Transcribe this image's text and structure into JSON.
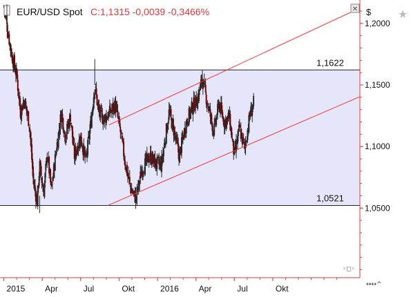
{
  "window": {
    "close_glyph": "✕",
    "currency_symbol": "$",
    "star_glyph": "★",
    "scroll_glyph": "◦◻◦",
    "nav_glyphs": "↔↔^"
  },
  "chart_data": {
    "type": "candlestick",
    "title": "EUR/USD Spot",
    "quote": "C:1,1315 -0,0039 -0,3466%",
    "colors": {
      "background": "#ffffff",
      "range_band": "#e6e6fa",
      "axis": "#e0393e",
      "trendline": "#ff3030",
      "level_line": "#222222",
      "up_candle": "#2a2a2a",
      "down_candle": "#7a0000",
      "title": "#111111",
      "quote": "#e0393e"
    },
    "x_axis": {
      "labels": [
        "2015",
        "Apr",
        "Jul",
        "Okt",
        "2016",
        "Apr",
        "Jul",
        "Okt"
      ],
      "label_months": [
        0,
        3,
        6,
        9,
        12,
        15,
        18,
        21
      ],
      "range_months": [
        -0.3,
        27.8
      ]
    },
    "y_axis": {
      "side": "right",
      "ticks": [
        "1,2000",
        "1,1500",
        "1,1000",
        "1,0500"
      ],
      "tick_values": [
        1.2,
        1.15,
        1.1,
        1.05
      ],
      "range": [
        0.9935,
        1.219
      ]
    },
    "horizontal_levels": [
      {
        "label": "1,1622",
        "value": 1.1622
      },
      {
        "label": "1,0521",
        "value": 1.0521
      }
    ],
    "channel": {
      "upper": {
        "from": [
          8.2,
          1.1175
        ],
        "to": [
          27.8,
          1.2125
        ]
      },
      "lower": {
        "from": [
          8.1,
          1.0521
        ],
        "to": [
          27.8,
          1.1405
        ]
      }
    },
    "series_anchors": [
      [
        0.0,
        1.214
      ],
      [
        0.6,
        1.175
      ],
      [
        1.0,
        1.158
      ],
      [
        1.3,
        1.128
      ],
      [
        1.6,
        1.138
      ],
      [
        2.0,
        1.118
      ],
      [
        2.3,
        1.072
      ],
      [
        2.6,
        1.055
      ],
      [
        2.8,
        1.085
      ],
      [
        3.1,
        1.062
      ],
      [
        3.4,
        1.095
      ],
      [
        3.7,
        1.064
      ],
      [
        4.1,
        1.098
      ],
      [
        4.5,
        1.128
      ],
      [
        4.8,
        1.108
      ],
      [
        5.2,
        1.125
      ],
      [
        5.5,
        1.092
      ],
      [
        6.0,
        1.108
      ],
      [
        6.4,
        1.088
      ],
      [
        6.8,
        1.12
      ],
      [
        7.1,
        1.15
      ],
      [
        7.4,
        1.128
      ],
      [
        7.8,
        1.122
      ],
      [
        8.3,
        1.128
      ],
      [
        8.7,
        1.134
      ],
      [
        9.1,
        1.112
      ],
      [
        9.5,
        1.085
      ],
      [
        9.9,
        1.066
      ],
      [
        10.3,
        1.058
      ],
      [
        10.8,
        1.082
      ],
      [
        11.4,
        1.092
      ],
      [
        11.9,
        1.086
      ],
      [
        12.3,
        1.085
      ],
      [
        12.9,
        1.128
      ],
      [
        13.3,
        1.112
      ],
      [
        13.7,
        1.092
      ],
      [
        14.2,
        1.118
      ],
      [
        14.7,
        1.132
      ],
      [
        15.1,
        1.138
      ],
      [
        15.5,
        1.155
      ],
      [
        15.9,
        1.135
      ],
      [
        16.4,
        1.112
      ],
      [
        16.8,
        1.135
      ],
      [
        17.2,
        1.12
      ],
      [
        17.6,
        1.124
      ],
      [
        18.0,
        1.092
      ],
      [
        18.4,
        1.115
      ],
      [
        18.8,
        1.098
      ],
      [
        19.2,
        1.125
      ],
      [
        19.5,
        1.135
      ]
    ]
  }
}
